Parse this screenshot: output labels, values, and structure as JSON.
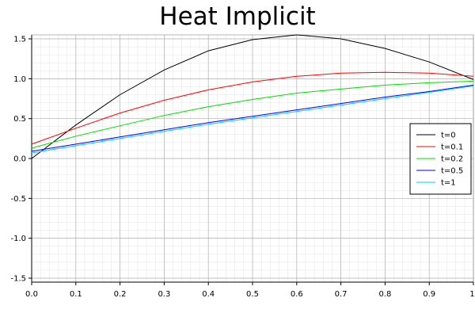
{
  "chart_data": {
    "type": "line",
    "title": "Heat Implicit",
    "xlabel": "",
    "ylabel": "",
    "xlim": [
      0,
      1
    ],
    "ylim": [
      -1.55,
      1.55
    ],
    "x_ticks": [
      0,
      0.1,
      0.2,
      0.3,
      0.4,
      0.5,
      0.6,
      0.7,
      0.8,
      0.9,
      1
    ],
    "x_tick_labels": [
      "0.0",
      "0.1",
      "0.2",
      "0.3",
      "0.4",
      "0.5",
      "0.6",
      "0.7",
      "0.8",
      "0.9",
      "1."
    ],
    "y_ticks": [
      -1.5,
      -1.0,
      -0.5,
      0.0,
      0.5,
      1.0,
      1.5
    ],
    "y_tick_labels": [
      "-1.5",
      "-1.0",
      "-0.5",
      "0.0",
      "0.5",
      "1.0",
      "1.5"
    ],
    "grid": true,
    "legend_position": "right",
    "x": [
      0,
      0.1,
      0.2,
      0.3,
      0.4,
      0.5,
      0.6,
      0.7,
      0.8,
      0.9,
      1.0
    ],
    "series": [
      {
        "name": "t=0",
        "color": "#000000",
        "values": [
          0.0,
          0.42,
          0.8,
          1.11,
          1.35,
          1.49,
          1.55,
          1.5,
          1.38,
          1.21,
          0.99
        ]
      },
      {
        "name": "t=0.1",
        "color": "#ff0000",
        "values": [
          0.18,
          0.38,
          0.57,
          0.73,
          0.86,
          0.96,
          1.03,
          1.07,
          1.08,
          1.07,
          1.03
        ]
      },
      {
        "name": "t=0.2",
        "color": "#00dd00",
        "values": [
          0.13,
          0.28,
          0.41,
          0.54,
          0.65,
          0.74,
          0.82,
          0.87,
          0.92,
          0.95,
          0.97
        ]
      },
      {
        "name": "t=0.5",
        "color": "#0000ff",
        "values": [
          0.09,
          0.18,
          0.27,
          0.36,
          0.45,
          0.53,
          0.61,
          0.69,
          0.77,
          0.84,
          0.92
        ]
      },
      {
        "name": "t=1",
        "color": "#00ccff",
        "values": [
          0.07,
          0.16,
          0.25,
          0.34,
          0.43,
          0.51,
          0.59,
          0.67,
          0.75,
          0.83,
          0.91
        ]
      }
    ]
  }
}
